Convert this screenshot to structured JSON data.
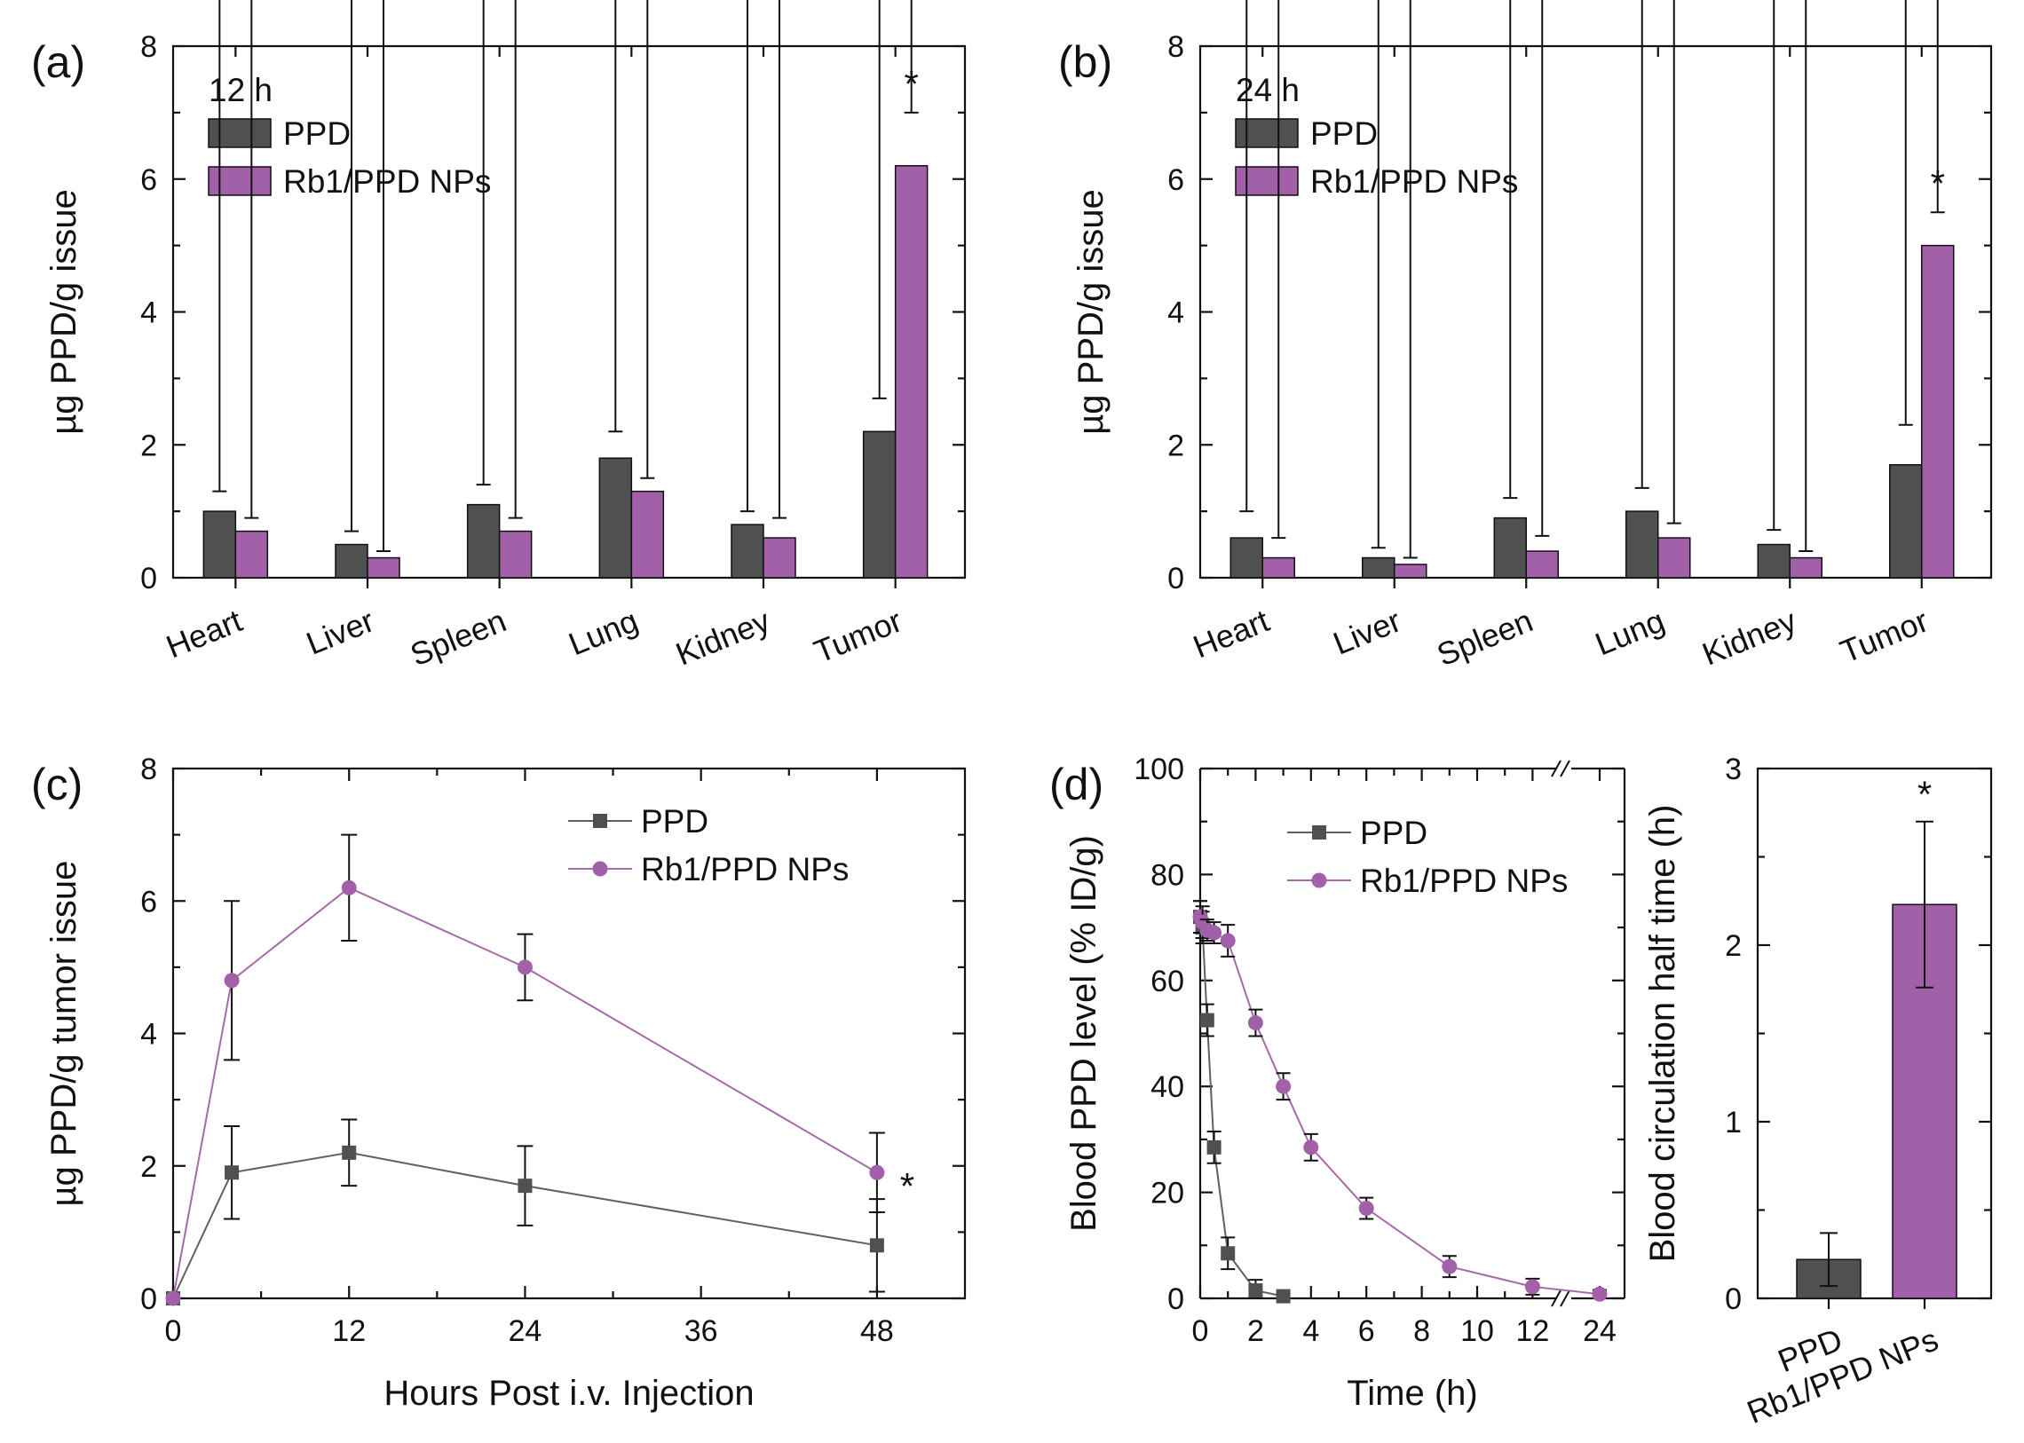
{
  "colors": {
    "ppd": "#505050",
    "np": "#a160a8",
    "ppd_line": "#606060",
    "np_line": "#a76aa9"
  },
  "legend_names": {
    "ppd": "PPD",
    "np": "Rb1/PPD NPs"
  },
  "chart_data": [
    {
      "id": "a",
      "type": "bar",
      "panel_label": "(a)",
      "title": "12 h",
      "ylabel": "µg PPD/g issue",
      "xlabel": "",
      "ylim": [
        0,
        8
      ],
      "yticks": [
        "0",
        "2",
        "4",
        "6",
        "8"
      ],
      "categories": [
        "Heart",
        "Liver",
        "Spleen",
        "Lung",
        "Kidney",
        "Tumor"
      ],
      "series": [
        {
          "name": "PPD",
          "values": [
            1.0,
            0.5,
            1.1,
            1.8,
            0.8,
            2.2
          ],
          "errors": [
            0.3,
            0.2,
            0.3,
            0.4,
            0.2,
            0.5
          ]
        },
        {
          "name": "Rb1/PPD NPs",
          "values": [
            0.7,
            0.3,
            0.7,
            1.3,
            0.6,
            6.2
          ],
          "errors": [
            0.2,
            0.1,
            0.2,
            0.2,
            0.3,
            0.8
          ]
        }
      ],
      "annotations": [
        {
          "text": "*",
          "category": "Tumor"
        }
      ]
    },
    {
      "id": "b",
      "type": "bar",
      "panel_label": "(b)",
      "title": "24 h",
      "ylabel": "µg PPD/g issue",
      "xlabel": "",
      "ylim": [
        0,
        8
      ],
      "yticks": [
        "0",
        "2",
        "4",
        "6",
        "8"
      ],
      "categories": [
        "Heart",
        "Liver",
        "Spleen",
        "Lung",
        "Kidney",
        "Tumor"
      ],
      "series": [
        {
          "name": "PPD",
          "values": [
            0.6,
            0.3,
            0.9,
            1.0,
            0.5,
            1.7
          ],
          "errors": [
            0.4,
            0.15,
            0.3,
            0.35,
            0.22,
            0.6
          ]
        },
        {
          "name": "Rb1/PPD NPs",
          "values": [
            0.3,
            0.2,
            0.4,
            0.6,
            0.3,
            5.0
          ],
          "errors": [
            0.3,
            0.1,
            0.23,
            0.22,
            0.1,
            0.5
          ]
        }
      ],
      "annotations": [
        {
          "text": "*",
          "category": "Tumor"
        }
      ]
    },
    {
      "id": "c",
      "type": "line",
      "panel_label": "(c)",
      "title": "",
      "xlabel": "Hours Post i.v. Injection",
      "ylabel": "µg PPD/g tumor issue",
      "xlim": [
        0,
        54
      ],
      "ylim": [
        0,
        8
      ],
      "xticks": [
        "0",
        "12",
        "24",
        "36",
        "48"
      ],
      "yticks": [
        "0",
        "2",
        "4",
        "6",
        "8"
      ],
      "series": [
        {
          "name": "PPD",
          "marker": "square",
          "x": [
            0,
            4,
            12,
            24,
            48
          ],
          "y": [
            0,
            1.9,
            2.2,
            1.7,
            0.8
          ],
          "errors": [
            0,
            0.7,
            0.5,
            0.6,
            0.7
          ]
        },
        {
          "name": "Rb1/PPD NPs",
          "marker": "circle",
          "x": [
            0,
            4,
            12,
            24,
            48
          ],
          "y": [
            0,
            4.8,
            6.2,
            5.0,
            1.9
          ],
          "errors": [
            0,
            1.2,
            0.8,
            0.5,
            0.6
          ]
        }
      ],
      "annotations": [
        {
          "text": "*",
          "x": 48
        }
      ]
    },
    {
      "id": "d-left",
      "type": "line",
      "panel_label": "(d)",
      "title": "",
      "xlabel": "Time (h)",
      "ylabel": "Blood PPD level (% ID/g)",
      "ylim": [
        0,
        100
      ],
      "axis_break_between": [
        12,
        24
      ],
      "xticks": [
        "0",
        "2",
        "4",
        "6",
        "8",
        "10",
        "12",
        "24"
      ],
      "yticks": [
        "0",
        "20",
        "40",
        "60",
        "80",
        "100"
      ],
      "series": [
        {
          "name": "PPD",
          "marker": "square",
          "x": [
            0,
            0.083,
            0.25,
            0.5,
            1,
            2,
            3
          ],
          "y": [
            72,
            70,
            52.5,
            28.5,
            8.5,
            1.5,
            0.4
          ],
          "errors": [
            3,
            3,
            3,
            3,
            3,
            2,
            0.5
          ]
        },
        {
          "name": "Rb1/PPD NPs",
          "marker": "circle",
          "x": [
            0,
            0.083,
            0.25,
            0.5,
            1,
            2,
            3,
            4,
            6,
            9,
            12,
            24
          ],
          "y": [
            72,
            71,
            69.5,
            69,
            67.5,
            52,
            40,
            28.5,
            17,
            6,
            2.2,
            0.8
          ],
          "errors": [
            3,
            3,
            2,
            2,
            3,
            2.5,
            2.5,
            2.5,
            2,
            2,
            1.5,
            0.8
          ]
        }
      ]
    },
    {
      "id": "d-right",
      "type": "bar",
      "panel_label": "",
      "title": "",
      "xlabel": "",
      "ylabel": "Blood circulation half time (h)",
      "ylim": [
        0,
        3
      ],
      "yticks": [
        "0",
        "1",
        "2",
        "3"
      ],
      "categories": [
        "PPD",
        "Rb1/PPD NPs"
      ],
      "values": [
        0.22,
        2.23
      ],
      "errors": [
        0.15,
        0.47
      ],
      "annotations": [
        {
          "text": "*",
          "category": "Rb1/PPD NPs"
        }
      ]
    }
  ]
}
